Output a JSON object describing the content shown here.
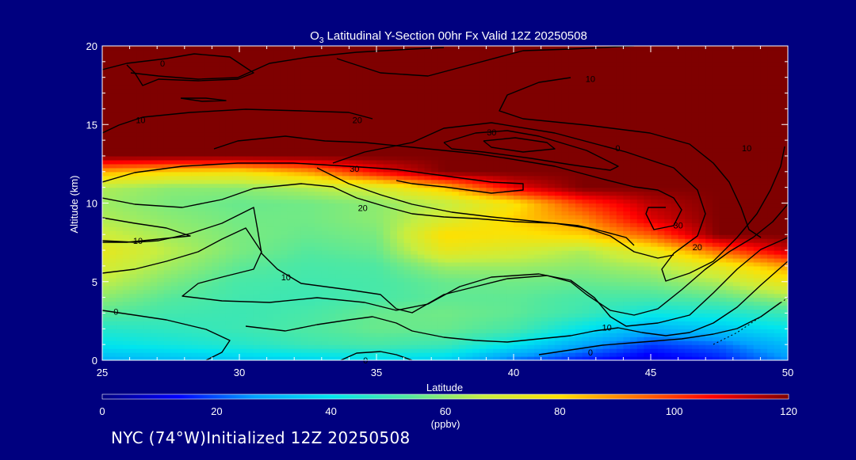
{
  "chart_data": {
    "type": "heatmap",
    "title": "O",
    "title_subscript": "3",
    "title_rest": " Latitudinal Y-Section 00hr  Fx Valid 12Z 20250508",
    "xlabel": "Latitude",
    "ylabel": "Altitude (km)",
    "xlim": [
      25,
      50
    ],
    "ylim": [
      0,
      20
    ],
    "x_ticks": [
      25,
      30,
      35,
      40,
      45,
      50
    ],
    "y_ticks": [
      0,
      5,
      10,
      15,
      20
    ],
    "colorbar": {
      "ticks": [
        0,
        20,
        40,
        60,
        80,
        100,
        120
      ],
      "units": "(ppbv)",
      "stops": [
        "#00007f",
        "#0000ff",
        "#00a0ff",
        "#00e5ee",
        "#50e8a0",
        "#c8ee40",
        "#ffe000",
        "#ff7000",
        "#ff0000",
        "#7f0000"
      ]
    },
    "latitudes": [
      25,
      27.5,
      30,
      32.5,
      35,
      37.5,
      40,
      42.5,
      45,
      47.5,
      50
    ],
    "altitudes": [
      0,
      1,
      2,
      3,
      4,
      5,
      6,
      7,
      8,
      9,
      10,
      11,
      12,
      13,
      14,
      15,
      16,
      17,
      18,
      19,
      20
    ],
    "values_ppbv": [
      [
        30,
        32,
        34,
        36,
        38,
        35,
        22,
        15,
        10,
        15,
        25
      ],
      [
        40,
        43,
        46,
        50,
        52,
        50,
        40,
        28,
        18,
        22,
        32
      ],
      [
        46,
        48,
        50,
        53,
        56,
        56,
        52,
        40,
        30,
        34,
        40
      ],
      [
        54,
        51,
        50,
        52,
        56,
        57,
        55,
        50,
        42,
        44,
        50
      ],
      [
        60,
        54,
        51,
        50,
        52,
        55,
        55,
        52,
        52,
        55,
        62
      ],
      [
        66,
        58,
        52,
        51,
        52,
        56,
        57,
        56,
        58,
        64,
        76
      ],
      [
        70,
        62,
        55,
        52,
        53,
        62,
        62,
        60,
        64,
        74,
        88
      ],
      [
        74,
        65,
        58,
        54,
        56,
        74,
        70,
        64,
        75,
        95,
        112
      ],
      [
        68,
        62,
        58,
        56,
        58,
        80,
        78,
        82,
        96,
        120,
        120
      ],
      [
        64,
        60,
        57,
        57,
        60,
        70,
        82,
        90,
        110,
        120,
        120
      ],
      [
        62,
        58,
        56,
        57,
        60,
        66,
        78,
        100,
        114,
        120,
        120
      ],
      [
        64,
        60,
        60,
        64,
        70,
        84,
        108,
        120,
        120,
        120,
        120
      ],
      [
        86,
        80,
        78,
        88,
        106,
        120,
        120,
        120,
        120,
        120,
        120
      ],
      [
        120,
        120,
        120,
        120,
        120,
        120,
        120,
        120,
        120,
        120,
        120
      ],
      [
        120,
        120,
        120,
        120,
        120,
        120,
        120,
        120,
        120,
        120,
        120
      ],
      [
        120,
        120,
        120,
        120,
        120,
        120,
        120,
        120,
        120,
        120,
        120
      ],
      [
        120,
        120,
        120,
        120,
        120,
        120,
        120,
        120,
        120,
        120,
        120
      ],
      [
        120,
        120,
        120,
        120,
        120,
        120,
        120,
        120,
        120,
        120,
        120
      ],
      [
        120,
        120,
        120,
        120,
        120,
        120,
        120,
        120,
        120,
        120,
        120
      ],
      [
        120,
        120,
        120,
        120,
        120,
        120,
        120,
        120,
        120,
        120,
        120
      ],
      [
        120,
        120,
        120,
        120,
        120,
        120,
        120,
        120,
        120,
        120,
        120
      ]
    ],
    "contour_labels": [
      {
        "text": "0",
        "lat": 27.2,
        "alt": 18.9
      },
      {
        "text": "10",
        "lat": 26.4,
        "alt": 15.3
      },
      {
        "text": "20",
        "lat": 34.3,
        "alt": 15.3
      },
      {
        "text": "10",
        "lat": 42.8,
        "alt": 17.9
      },
      {
        "text": "30",
        "lat": 39.2,
        "alt": 14.5
      },
      {
        "text": "0",
        "lat": 43.8,
        "alt": 13.5
      },
      {
        "text": "10",
        "lat": 48.5,
        "alt": 13.5
      },
      {
        "text": "30",
        "lat": 34.2,
        "alt": 12.2
      },
      {
        "text": "20",
        "lat": 34.5,
        "alt": 9.7
      },
      {
        "text": "30",
        "lat": 46,
        "alt": 8.6
      },
      {
        "text": "20",
        "lat": 46.7,
        "alt": 7.2
      },
      {
        "text": "10",
        "lat": 26.3,
        "alt": 7.6
      },
      {
        "text": "10",
        "lat": 31.7,
        "alt": 5.3
      },
      {
        "text": "0",
        "lat": 25.5,
        "alt": 3.1
      },
      {
        "text": "10",
        "lat": 43.4,
        "alt": 2.1
      },
      {
        "text": "0",
        "lat": 42.8,
        "alt": 0.5
      },
      {
        "text": "0",
        "lat": 34.6,
        "alt": 0
      }
    ]
  },
  "footer": {
    "text": "NYC (74°W)Initialized 12Z 20250508"
  }
}
